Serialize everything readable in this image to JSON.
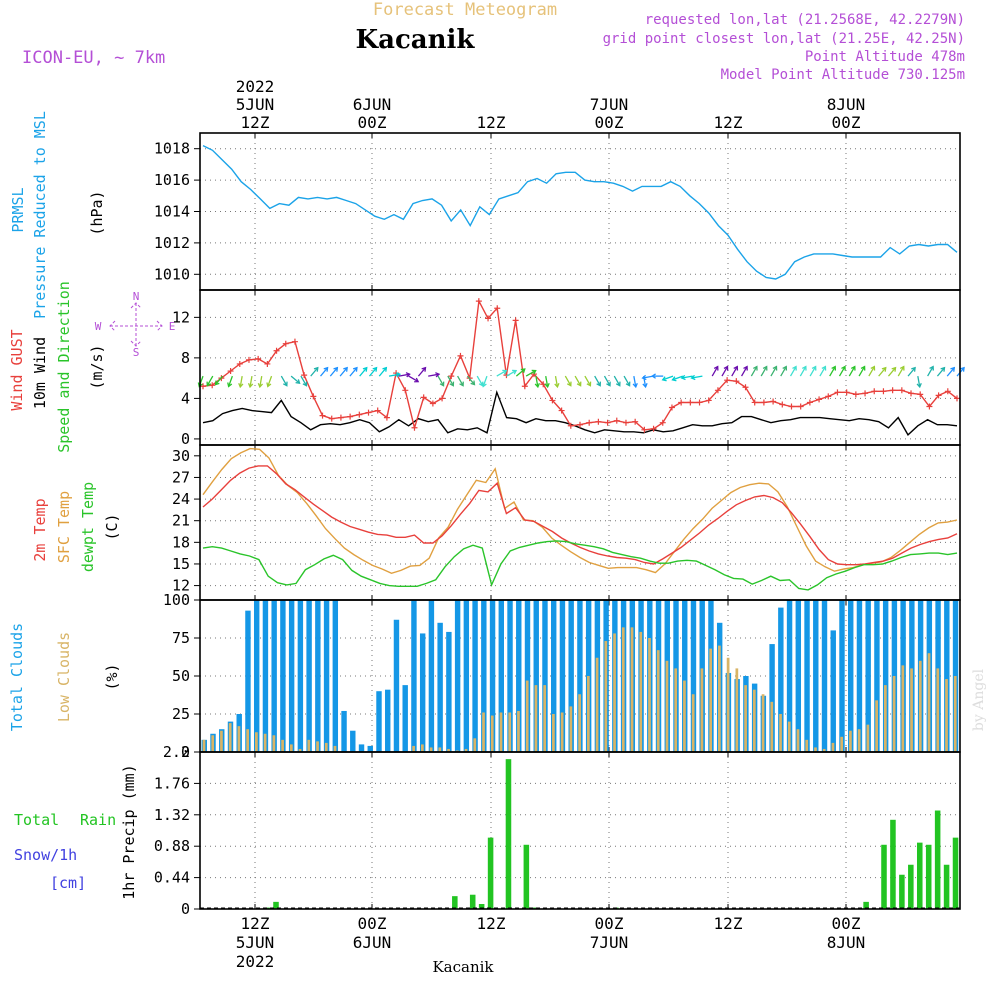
{
  "header": {
    "title": "Forecast Meteogram",
    "station": "Kacanik",
    "model": "ICON-EU, ~ 7km",
    "requested": "requested lon,lat (21.2568E, 42.2279N)",
    "gridpoint": "grid point closest lon,lat (21.25E, 42.25N)",
    "altitude": "Point Altitude 478m",
    "model_altitude": "Model Point Altitude 730.125m",
    "footer_station": "Kacanik",
    "watermark": "by Angel"
  },
  "colors": {
    "title": "#e6c27a",
    "station": "#000000",
    "meta": "#b44fd6",
    "pressure": "#1ba3e8",
    "gust": "#e8403c",
    "wind": "#000000",
    "dir": "#2ac42a",
    "t2m": "#e8403c",
    "sfc": "#e0a040",
    "dew": "#2ac42a",
    "total_clouds": "#1497e6",
    "low_clouds": "#d8b466",
    "rain": "#22c422",
    "snow": "#4040e0",
    "grid": "#777777"
  },
  "time_axis": {
    "top_labels": [
      {
        "lines": [
          "2022",
          "5JUN",
          "12Z"
        ]
      },
      {
        "lines": [
          "6JUN",
          "00Z"
        ]
      },
      {
        "lines": [
          "12Z"
        ]
      },
      {
        "lines": [
          "7JUN",
          "00Z"
        ]
      },
      {
        "lines": [
          "12Z"
        ]
      },
      {
        "lines": [
          "8JUN",
          "00Z"
        ]
      }
    ],
    "bottom_labels": [
      {
        "lines": [
          "12Z",
          "5JUN",
          "2022"
        ]
      },
      {
        "lines": [
          "00Z",
          "6JUN"
        ]
      },
      {
        "lines": [
          "12Z"
        ]
      },
      {
        "lines": [
          "00Z",
          "7JUN"
        ]
      },
      {
        "lines": [
          "12Z"
        ]
      },
      {
        "lines": [
          "00Z",
          "8JUN"
        ]
      }
    ]
  },
  "panels": {
    "pressure": {
      "label1": "PRMSL",
      "label2": "Pressure Reduced to MSL",
      "unit": "(hPa)"
    },
    "wind": {
      "label1": "Wind GUST",
      "label2": "10m Wind",
      "label3": "Speed and Direction",
      "unit": "(m/s)",
      "compass": {
        "n": "N",
        "s": "S",
        "w": "W",
        "e": "E"
      }
    },
    "temp": {
      "label1": "2m Temp",
      "label2": "SFC Temp",
      "label3": "dewpt Temp",
      "unit": "(C)"
    },
    "clouds": {
      "label1": "Total Clouds",
      "label2": "Low Clouds",
      "unit": "(%)"
    },
    "precip": {
      "label_total": "Total",
      "label_rain": "Rain",
      "label_snow": "Snow/1h",
      "label_cm": "[cm]",
      "unit": "1hr Precip (mm)"
    }
  },
  "chart_data": [
    {
      "type": "line",
      "title": "PRMSL Pressure Reduced to MSL",
      "ylabel": "(hPa)",
      "ylim": [
        1009,
        1019
      ],
      "yticks": [
        "1010",
        "1012",
        "1014",
        "1016",
        "1018"
      ],
      "x": "hours since 2022-06-05 00Z, 1-hourly from +4",
      "series": [
        {
          "name": "PRMSL",
          "values": [
            1018.2,
            1017.9,
            1017.3,
            1016.7,
            1015.9,
            1015.4,
            1014.8,
            1014.2,
            1014.5,
            1014.4,
            1014.9,
            1014.8,
            1014.9,
            1014.8,
            1014.9,
            1014.7,
            1014.5,
            1014.1,
            1013.7,
            1013.5,
            1013.8,
            1013.5,
            1014.5,
            1014.7,
            1014.8,
            1014.4,
            1013.4,
            1014.1,
            1013.1,
            1014.3,
            1013.8,
            1014.8,
            1015.0,
            1015.2,
            1015.9,
            1016.1,
            1015.8,
            1016.4,
            1016.5,
            1016.5,
            1016.0,
            1015.9,
            1015.9,
            1015.8,
            1015.6,
            1015.3,
            1015.6,
            1015.6,
            1015.6,
            1015.9,
            1015.6,
            1015.0,
            1014.5,
            1013.9,
            1013.1,
            1012.5,
            1011.6,
            1010.8,
            1010.2,
            1009.8,
            1009.7,
            1010.0,
            1010.8,
            1011.1,
            1011.3,
            1011.3,
            1011.3,
            1011.2,
            1011.1,
            1011.1,
            1011.1,
            1011.1,
            1011.7,
            1011.3,
            1011.8,
            1011.9,
            1011.8,
            1011.9,
            1011.9,
            1011.4
          ]
        }
      ]
    },
    {
      "type": "line",
      "title": "Wind GUST / 10m Wind Speed and Direction",
      "ylabel": "(m/s)",
      "ylim": [
        -0.6,
        14.7
      ],
      "yticks": [
        "0",
        "4",
        "8",
        "12"
      ],
      "series": [
        {
          "name": "Wind GUST",
          "values": [
            5.2,
            5.3,
            6.0,
            6.7,
            7.4,
            7.8,
            7.9,
            7.4,
            8.7,
            9.4,
            9.6,
            6.3,
            4.2,
            2.3,
            2.0,
            2.1,
            2.2,
            2.4,
            2.6,
            2.8,
            2.1,
            6.5,
            4.8,
            1.1,
            4.1,
            3.5,
            4.0,
            6.2,
            8.2,
            6.0,
            13.6,
            11.9,
            12.9,
            6.3,
            11.7,
            5.2,
            6.4,
            5.4,
            3.8,
            2.8,
            1.3,
            1.4,
            1.6,
            1.7,
            1.6,
            1.8,
            1.6,
            1.7,
            0.9,
            1.0,
            1.6,
            3.1,
            3.6,
            3.6,
            3.6,
            3.8,
            4.8,
            5.8,
            5.7,
            5.1,
            3.6,
            3.6,
            3.7,
            3.4,
            3.2,
            3.2,
            3.6,
            3.9,
            4.2,
            4.6,
            4.6,
            4.4,
            4.5,
            4.7,
            4.7,
            4.8,
            4.8,
            4.5,
            4.4,
            3.2,
            4.3,
            4.7,
            4.0
          ]
        },
        {
          "name": "10m Wind",
          "values": [
            1.6,
            1.8,
            2.5,
            2.8,
            3.0,
            2.8,
            2.7,
            2.6,
            3.8,
            2.2,
            1.6,
            0.9,
            1.4,
            1.5,
            1.4,
            1.6,
            1.9,
            1.6,
            0.7,
            1.2,
            1.9,
            1.3,
            2.0,
            1.7,
            1.9,
            0.6,
            1.0,
            0.9,
            1.1,
            0.6,
            4.6,
            2.1,
            2.0,
            1.6,
            2.0,
            1.8,
            1.8,
            1.6,
            1.3,
            0.9,
            0.6,
            0.9,
            0.8,
            0.7,
            0.7,
            0.6,
            0.9,
            0.7,
            0.8,
            1.1,
            1.4,
            1.3,
            1.3,
            1.5,
            1.6,
            2.2,
            2.2,
            1.9,
            1.6,
            1.8,
            1.9,
            2.1,
            2.1,
            2.1,
            2.0,
            1.9,
            1.8,
            2.0,
            1.9,
            1.7,
            1.1,
            2.1,
            0.4,
            1.3,
            1.9,
            1.4,
            1.4,
            1.3
          ]
        },
        {
          "name": "Direction arrows (deg, toward)",
          "values": [
            200,
            210,
            220,
            200,
            190,
            190,
            190,
            200,
            150,
            130,
            150,
            40,
            40,
            40,
            40,
            40,
            40,
            40,
            40,
            80,
            80,
            120,
            40,
            80,
            150,
            150,
            150,
            140,
            150,
            200,
            60,
            60,
            50,
            60,
            170,
            170,
            170,
            150,
            150,
            150,
            150,
            150,
            150,
            150,
            170,
            170,
            260,
            270,
            250,
            250,
            260,
            260,
            30,
            30,
            30,
            30,
            30,
            30,
            30,
            30,
            30,
            30,
            30,
            30,
            30,
            30,
            30,
            30,
            30,
            40,
            40,
            30,
            40,
            170,
            30,
            40,
            40,
            40
          ]
        }
      ]
    },
    {
      "type": "line",
      "title": "2m Temp / SFC Temp / dewpt Temp",
      "ylabel": "(C)",
      "ylim": [
        10,
        31.5
      ],
      "yticks": [
        "12",
        "15",
        "18",
        "21",
        "24",
        "27",
        "30"
      ],
      "series": [
        {
          "name": "2m Temp",
          "values": [
            22.9,
            24.0,
            25.3,
            26.6,
            27.6,
            28.3,
            28.6,
            28.6,
            27.5,
            26.1,
            25.3,
            24.3,
            23.3,
            22.4,
            21.5,
            20.8,
            20.2,
            19.8,
            19.4,
            19.1,
            19.0,
            18.7,
            18.7,
            19.0,
            17.9,
            17.9,
            18.9,
            20.3,
            21.9,
            23.4,
            25.2,
            25.0,
            26.2,
            22.0,
            22.8,
            21.1,
            20.9,
            20.2,
            19.5,
            18.6,
            17.9,
            17.3,
            16.8,
            16.4,
            16.1,
            15.9,
            15.8,
            15.6,
            15.2,
            15.0,
            15.7,
            16.5,
            17.3,
            18.3,
            19.3,
            20.4,
            21.3,
            22.3,
            23.2,
            23.8,
            24.3,
            24.5,
            24.2,
            23.5,
            22.1,
            20.5,
            18.8,
            17.0,
            15.6,
            15.0,
            14.9,
            14.9,
            15.0,
            15.2,
            15.4,
            15.8,
            16.5,
            17.2,
            17.7,
            18.1,
            18.4,
            18.6,
            19.2
          ]
        },
        {
          "name": "SFC Temp",
          "values": [
            24.6,
            26.4,
            28.1,
            29.6,
            30.4,
            31.0,
            30.9,
            29.7,
            27.3,
            25.9,
            24.9,
            23.4,
            21.7,
            19.9,
            18.5,
            17.2,
            16.3,
            15.5,
            14.8,
            14.3,
            13.7,
            14.1,
            14.7,
            14.8,
            15.8,
            18.6,
            20.1,
            22.6,
            24.6,
            26.6,
            26.3,
            28.2,
            22.7,
            23.6,
            21.1,
            21.0,
            20.1,
            18.6,
            17.6,
            16.7,
            15.9,
            15.2,
            14.8,
            14.4,
            14.5,
            14.5,
            14.5,
            14.2,
            13.8,
            15.0,
            16.7,
            18.4,
            19.9,
            21.2,
            22.7,
            23.8,
            24.9,
            25.6,
            26.0,
            26.2,
            26.1,
            25.0,
            22.9,
            20.2,
            17.5,
            15.4,
            14.6,
            14.0,
            14.3,
            14.5,
            14.9,
            15.1,
            15.3,
            15.9,
            16.9,
            18.0,
            19.1,
            20.0,
            20.7,
            20.8,
            21.1
          ]
        },
        {
          "name": "dewpt Temp",
          "values": [
            17.2,
            17.4,
            17.2,
            16.8,
            16.4,
            16.1,
            15.6,
            13.3,
            12.4,
            12.1,
            12.3,
            14.2,
            14.9,
            15.7,
            16.2,
            15.6,
            14.1,
            13.3,
            12.8,
            12.3,
            12.0,
            11.9,
            11.9,
            11.9,
            12.3,
            12.8,
            14.6,
            16.0,
            17.1,
            17.6,
            17.2,
            12.1,
            15.0,
            16.8,
            17.3,
            17.6,
            17.9,
            18.1,
            18.2,
            18.1,
            17.8,
            17.6,
            17.4,
            17.1,
            16.6,
            16.3,
            16.0,
            15.8,
            15.4,
            15.1,
            15.1,
            15.4,
            15.5,
            15.4,
            14.8,
            14.2,
            13.5,
            13.0,
            12.9,
            12.2,
            12.7,
            13.3,
            12.7,
            12.8,
            11.6,
            11.4,
            12.1,
            13.1,
            13.6,
            14.0,
            14.5,
            14.9,
            14.9,
            15.0,
            15.4,
            15.9,
            16.3,
            16.4,
            16.5,
            16.5,
            16.3,
            16.5
          ]
        }
      ]
    },
    {
      "type": "bar",
      "title": "Total Clouds / Low Clouds",
      "ylabel": "(%)",
      "ylim": [
        0,
        100
      ],
      "yticks": [
        "0",
        "25",
        "50",
        "75",
        "100"
      ],
      "series": [
        {
          "name": "Total Clouds",
          "values": [
            8,
            12,
            15,
            20,
            25,
            93,
            100,
            100,
            100,
            100,
            100,
            100,
            100,
            100,
            100,
            100,
            27,
            14,
            5,
            4,
            40,
            41,
            87,
            44,
            100,
            78,
            100,
            85,
            79,
            100,
            100,
            100,
            100,
            100,
            100,
            100,
            100,
            100,
            100,
            100,
            100,
            100,
            100,
            100,
            100,
            100,
            100,
            100,
            100,
            100,
            100,
            100,
            100,
            100,
            100,
            100,
            100,
            100,
            100,
            85,
            52,
            48,
            50,
            45,
            37,
            71,
            95,
            100,
            100,
            100,
            100,
            100,
            80,
            100,
            100,
            100,
            100,
            100,
            100,
            100,
            100,
            100,
            100,
            100,
            100,
            100,
            100
          ]
        },
        {
          "name": "Low Clouds",
          "values": [
            8,
            11,
            14,
            19,
            17,
            15,
            13,
            12,
            11,
            8,
            5,
            2,
            8,
            7,
            6,
            4,
            0,
            0,
            0,
            0,
            0,
            0,
            0,
            0,
            4,
            5,
            3,
            3,
            2,
            1,
            2,
            9,
            26,
            24,
            26,
            26,
            27,
            47,
            44,
            44,
            25,
            26,
            30,
            38,
            50,
            62,
            73,
            78,
            82,
            82,
            79,
            75,
            67,
            60,
            55,
            47,
            38,
            55,
            68,
            70,
            62,
            55,
            44,
            41,
            38,
            33,
            25,
            20,
            15,
            8,
            3,
            2,
            6,
            10,
            14,
            15,
            18,
            34,
            44,
            50,
            57,
            55,
            60,
            65,
            55,
            48,
            50,
            48,
            48,
            51
          ]
        }
      ]
    },
    {
      "type": "bar",
      "title": "Total Rain / Snow 1h",
      "ylabel": "1hr Precip (mm)",
      "ylim": [
        0,
        2.2
      ],
      "yticks": [
        "0",
        "0.44",
        "0.88",
        "1.32",
        "1.76",
        "2.2"
      ],
      "series": [
        {
          "name": "Total Rain",
          "values": [
            0,
            0,
            0,
            0,
            0,
            0,
            0,
            0.02,
            0.1,
            0,
            0,
            0,
            0,
            0,
            0,
            0,
            0,
            0,
            0,
            0,
            0,
            0,
            0,
            0,
            0,
            0,
            0,
            0,
            0.18,
            0,
            0.2,
            0.07,
            1.0,
            0,
            2.1,
            0,
            0.9,
            0.02,
            0,
            0,
            0,
            0,
            0,
            0,
            0,
            0,
            0.02,
            0,
            0,
            0,
            0,
            0,
            0,
            0,
            0,
            0,
            0,
            0,
            0,
            0,
            0,
            0,
            0,
            0,
            0,
            0,
            0,
            0,
            0,
            0,
            0,
            0,
            0,
            0,
            0.1,
            0,
            0.9,
            1.25,
            0.48,
            0.62,
            0.93,
            0.9,
            1.38,
            0.62,
            1.0
          ]
        },
        {
          "name": "Snow/1h",
          "values": []
        }
      ]
    }
  ]
}
